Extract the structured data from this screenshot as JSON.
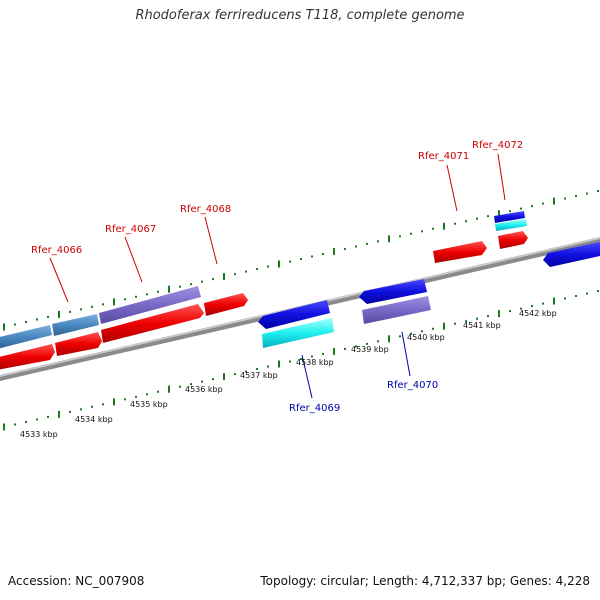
{
  "title": "Rhodoferax ferrireducens T118, complete genome",
  "accession": "Accession: NC_007908",
  "topology": "Topology: circular; Length: 4,712,337 bp; Genes: 4,228",
  "colors": {
    "forward_label": "#cc0000",
    "reverse_label": "#0000aa",
    "backbone": "#888888",
    "ticks": "#1a7a1a"
  },
  "kbp_labels": [
    "4533 kbp",
    "4534 kbp",
    "4535 kbp",
    "4536 kbp",
    "4537 kbp",
    "4538 kbp",
    "4539 kbp",
    "4540 kbp",
    "4541 kbp",
    "4542 kbp"
  ],
  "gene_labels_forward": [
    "Rfer_4066",
    "Rfer_4067",
    "Rfer_4068",
    "Rfer_4071",
    "Rfer_4072"
  ],
  "gene_labels_reverse": [
    "Rfer_4069",
    "Rfer_4070"
  ]
}
